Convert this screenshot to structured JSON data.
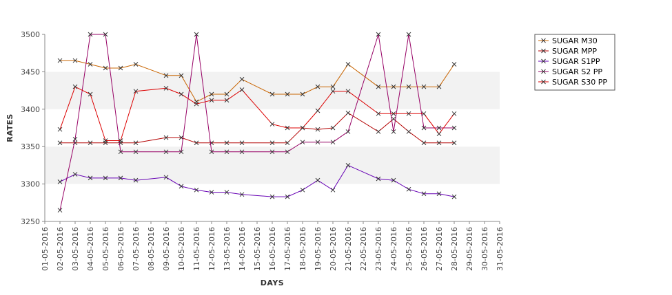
{
  "chart_data": {
    "type": "line",
    "title": "",
    "xlabel": "DAYS",
    "ylabel": "RATES",
    "ylim": [
      3250,
      3500
    ],
    "yticks": [
      3250,
      3300,
      3350,
      3400,
      3450,
      3500
    ],
    "grid": "alternating horizontal bands",
    "legend": "top-right",
    "background_bands": [
      "#ffffff",
      "#f2f2f2"
    ],
    "x_range": [
      "2016-05-01",
      "2016-05-31"
    ],
    "xticks": [
      "01-05-2016",
      "02-05-2016",
      "03-05-2016",
      "04-05-2016",
      "05-05-2016",
      "06-05-2016",
      "07-05-2016",
      "08-05-2016",
      "09-05-2016",
      "10-05-2016",
      "11-05-2016",
      "12-05-2016",
      "13-05-2016",
      "14-05-2016",
      "15-05-2016",
      "16-05-2016",
      "17-05-2016",
      "18-05-2016",
      "19-05-2016",
      "20-05-2016",
      "21-05-2016",
      "22-05-2016",
      "23-05-2016",
      "24-05-2016",
      "25-05-2016",
      "26-05-2016",
      "27-05-2016",
      "28-05-2016",
      "29-05-2016",
      "30-05-2016",
      "31-05-2016"
    ],
    "series": [
      {
        "name": "SUGAR M30",
        "color": "#c86400",
        "marker": "x",
        "x": [
          "2016-05-02",
          "2016-05-03",
          "2016-05-04",
          "2016-05-05",
          "2016-05-06",
          "2016-05-07",
          "2016-05-09",
          "2016-05-10",
          "2016-05-11",
          "2016-05-12",
          "2016-05-13",
          "2016-05-14",
          "2016-05-16",
          "2016-05-17",
          "2016-05-18",
          "2016-05-19",
          "2016-05-20",
          "2016-05-21",
          "2016-05-23",
          "2016-05-24",
          "2016-05-25",
          "2016-05-26",
          "2016-05-27",
          "2016-05-28"
        ],
        "values": [
          3465,
          3465,
          3460,
          3455,
          3455,
          3460,
          3445,
          3445,
          3410,
          3420,
          3420,
          3440,
          3420,
          3420,
          3420,
          3430,
          3430,
          3460,
          3430,
          3430,
          3430,
          3430,
          3430,
          3460
        ]
      },
      {
        "name": "SUGAR MPP",
        "color": "#b40000",
        "marker": "x",
        "x": [
          "2016-05-02",
          "2016-05-03",
          "2016-05-04",
          "2016-05-05",
          "2016-05-06",
          "2016-05-07",
          "2016-05-09",
          "2016-05-10",
          "2016-05-11",
          "2016-05-12",
          "2016-05-13",
          "2016-05-14",
          "2016-05-16",
          "2016-05-17",
          "2016-05-18",
          "2016-05-19",
          "2016-05-20",
          "2016-05-21",
          "2016-05-23",
          "2016-05-24",
          "2016-05-25",
          "2016-05-26",
          "2016-05-27",
          "2016-05-28"
        ],
        "values": [
          3355,
          3355,
          3355,
          3355,
          3355,
          3355,
          3362,
          3362,
          3355,
          3355,
          3355,
          3355,
          3355,
          3355,
          3375,
          3373,
          3375,
          3395,
          3370,
          3387,
          3370,
          3355,
          3355,
          3355
        ]
      },
      {
        "name": "SUGAR S1PP",
        "color": "#6600b4",
        "marker": "x",
        "x": [
          "2016-05-02",
          "2016-05-03",
          "2016-05-04",
          "2016-05-05",
          "2016-05-06",
          "2016-05-07",
          "2016-05-09",
          "2016-05-10",
          "2016-05-11",
          "2016-05-12",
          "2016-05-13",
          "2016-05-14",
          "2016-05-16",
          "2016-05-17",
          "2016-05-18",
          "2016-05-19",
          "2016-05-20",
          "2016-05-21",
          "2016-05-23",
          "2016-05-24",
          "2016-05-25",
          "2016-05-26",
          "2016-05-27",
          "2016-05-28"
        ],
        "values": [
          3303,
          3313,
          3308,
          3308,
          3308,
          3305,
          3309,
          3297,
          3292,
          3289,
          3289,
          3286,
          3283,
          3283,
          3292,
          3305,
          3292,
          3325,
          3307,
          3305,
          3293,
          3287,
          3287,
          3283
        ]
      },
      {
        "name": "SUGAR S2 PP",
        "color": "#960064",
        "marker": "x",
        "x": [
          "2016-05-02",
          "2016-05-03",
          "2016-05-04",
          "2016-05-05",
          "2016-05-06",
          "2016-05-07",
          "2016-05-09",
          "2016-05-10",
          "2016-05-11",
          "2016-05-12",
          "2016-05-13",
          "2016-05-14",
          "2016-05-16",
          "2016-05-17",
          "2016-05-18",
          "2016-05-19",
          "2016-05-20",
          "2016-05-21",
          "2016-05-23",
          "2016-05-24",
          "2016-05-25",
          "2016-05-26",
          "2016-05-27",
          "2016-05-28"
        ],
        "values": [
          3265,
          3360,
          3500,
          3500,
          3343,
          3343,
          3343,
          3343,
          3500,
          3343,
          3343,
          3343,
          3343,
          3343,
          3356,
          3356,
          3356,
          3370,
          3500,
          3370,
          3500,
          3375,
          3375,
          3375
        ]
      },
      {
        "name": "SUGAR S30 PP",
        "color": "#dc0000",
        "marker": "x",
        "x": [
          "2016-05-02",
          "2016-05-03",
          "2016-05-04",
          "2016-05-05",
          "2016-05-06",
          "2016-05-07",
          "2016-05-09",
          "2016-05-10",
          "2016-05-11",
          "2016-05-12",
          "2016-05-13",
          "2016-05-14",
          "2016-05-16",
          "2016-05-17",
          "2016-05-18",
          "2016-05-19",
          "2016-05-20",
          "2016-05-21",
          "2016-05-23",
          "2016-05-24",
          "2016-05-25",
          "2016-05-26",
          "2016-05-27",
          "2016-05-28"
        ],
        "values": [
          3373,
          3430,
          3420,
          3358,
          3358,
          3424,
          3428,
          3420,
          3407,
          3412,
          3412,
          3426,
          3380,
          3375,
          3375,
          3398,
          3424,
          3424,
          3394,
          3394,
          3394,
          3394,
          3367,
          3394
        ]
      }
    ]
  }
}
